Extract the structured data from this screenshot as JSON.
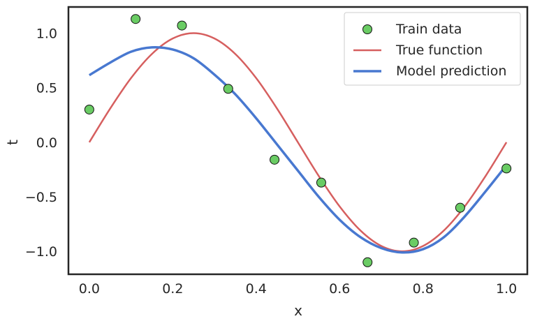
{
  "chart_data": {
    "type": "scatter",
    "title": "",
    "xlabel": "x",
    "ylabel": "t",
    "xlim": [
      -0.05,
      1.05
    ],
    "ylim": [
      -1.21,
      1.24
    ],
    "grid": false,
    "legend_placement": "top-right",
    "xticks": [
      {
        "v": 0.0,
        "label": "0.0"
      },
      {
        "v": 0.2,
        "label": "0.2"
      },
      {
        "v": 0.4,
        "label": "0.4"
      },
      {
        "v": 0.6,
        "label": "0.6"
      },
      {
        "v": 0.8,
        "label": "0.8"
      },
      {
        "v": 1.0,
        "label": "1.0"
      }
    ],
    "yticks": [
      {
        "v": 1.0,
        "label": "1.0"
      },
      {
        "v": 0.5,
        "label": "0.5"
      },
      {
        "v": 0.0,
        "label": "0.0"
      },
      {
        "v": -0.5,
        "label": "−0.5"
      },
      {
        "v": -1.0,
        "label": "−1.0"
      }
    ],
    "series": [
      {
        "name": "Train data",
        "kind": "scatter",
        "color": "#6acc64",
        "x": [
          0.0,
          0.111,
          0.222,
          0.333,
          0.444,
          0.556,
          0.667,
          0.778,
          0.889,
          1.0
        ],
        "y": [
          0.3,
          1.13,
          1.07,
          0.49,
          -0.16,
          -0.37,
          -1.1,
          -0.92,
          -0.6,
          -0.24
        ]
      },
      {
        "name": "True function",
        "kind": "line",
        "color": "#d65f5f",
        "x": [
          0,
          0.05,
          0.1,
          0.15,
          0.2,
          0.25,
          0.3,
          0.35,
          0.4,
          0.45,
          0.5,
          0.55,
          0.6,
          0.65,
          0.7,
          0.75,
          0.8,
          0.85,
          0.9,
          0.95,
          1.0
        ],
        "y": [
          0,
          0.309,
          0.588,
          0.809,
          0.951,
          1.0,
          0.951,
          0.809,
          0.588,
          0.309,
          0,
          -0.309,
          -0.588,
          -0.809,
          -0.951,
          -1.0,
          -0.951,
          -0.809,
          -0.588,
          -0.309,
          0
        ]
      },
      {
        "name": "Model prediction",
        "kind": "line",
        "color": "#4878d0",
        "x": [
          0,
          0.05,
          0.1,
          0.15,
          0.2,
          0.25,
          0.3,
          0.35,
          0.4,
          0.45,
          0.5,
          0.55,
          0.6,
          0.65,
          0.7,
          0.75,
          0.8,
          0.85,
          0.9,
          0.95,
          1.0
        ],
        "y": [
          0.615,
          0.73,
          0.83,
          0.87,
          0.85,
          0.77,
          0.62,
          0.44,
          0.22,
          -0.02,
          -0.26,
          -0.5,
          -0.71,
          -0.87,
          -0.97,
          -1.01,
          -0.98,
          -0.87,
          -0.68,
          -0.45,
          -0.21
        ]
      }
    ]
  }
}
